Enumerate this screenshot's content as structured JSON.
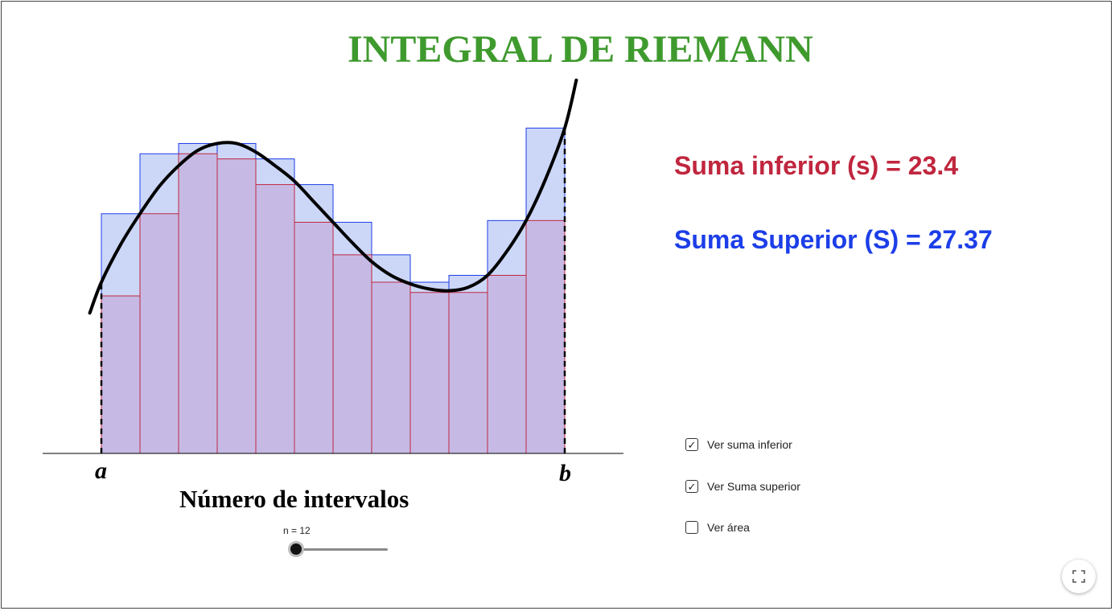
{
  "title": "INTEGRAL DE RIEMANN",
  "sums": {
    "lower_text": "Suma inferior (s) = 23.4",
    "upper_text": "Suma Superior (S) = 27.37"
  },
  "labels": {
    "a": "a",
    "b": "b"
  },
  "slider": {
    "title": "Número de intervalos",
    "value_label": "n = 12",
    "n": 12
  },
  "checkboxes": [
    {
      "label": "Ver suma inferior",
      "checked": true
    },
    {
      "label": "Ver Suma superior",
      "checked": true
    },
    {
      "label": "Ver área",
      "checked": false
    }
  ],
  "icons": {
    "fullscreen": "fullscreen-icon"
  },
  "colors": {
    "title": "#3f9a2e",
    "lower": "#c0263e",
    "upper": "#1c3ee8",
    "curve": "#000000"
  },
  "chart_data": {
    "type": "bar",
    "interval": [
      0,
      12
    ],
    "n": 12,
    "lower_values": [
      4.6,
      7.0,
      8.75,
      8.6,
      7.85,
      6.75,
      5.8,
      5.0,
      4.7,
      4.7,
      5.2,
      6.8
    ],
    "upper_values": [
      7.0,
      8.75,
      9.05,
      9.05,
      8.6,
      7.85,
      6.75,
      5.8,
      5.0,
      5.2,
      6.8,
      9.5
    ],
    "curve_x": [
      -0.3,
      0.0,
      0.5,
      1.0,
      1.5,
      2.0,
      2.5,
      3.0,
      3.5,
      4.0,
      4.5,
      5.0,
      5.5,
      6.0,
      6.5,
      7.0,
      7.5,
      8.0,
      8.5,
      9.0,
      9.5,
      10.0,
      10.5,
      11.0,
      11.5,
      12.0,
      12.3
    ],
    "curve_y": [
      4.1,
      5.0,
      6.1,
      7.0,
      7.8,
      8.4,
      8.85,
      9.05,
      9.05,
      8.8,
      8.4,
      7.95,
      7.35,
      6.75,
      6.15,
      5.6,
      5.2,
      4.95,
      4.8,
      4.75,
      4.85,
      5.2,
      5.9,
      6.8,
      8.0,
      9.5,
      10.9
    ],
    "ylim": [
      0,
      11
    ]
  }
}
